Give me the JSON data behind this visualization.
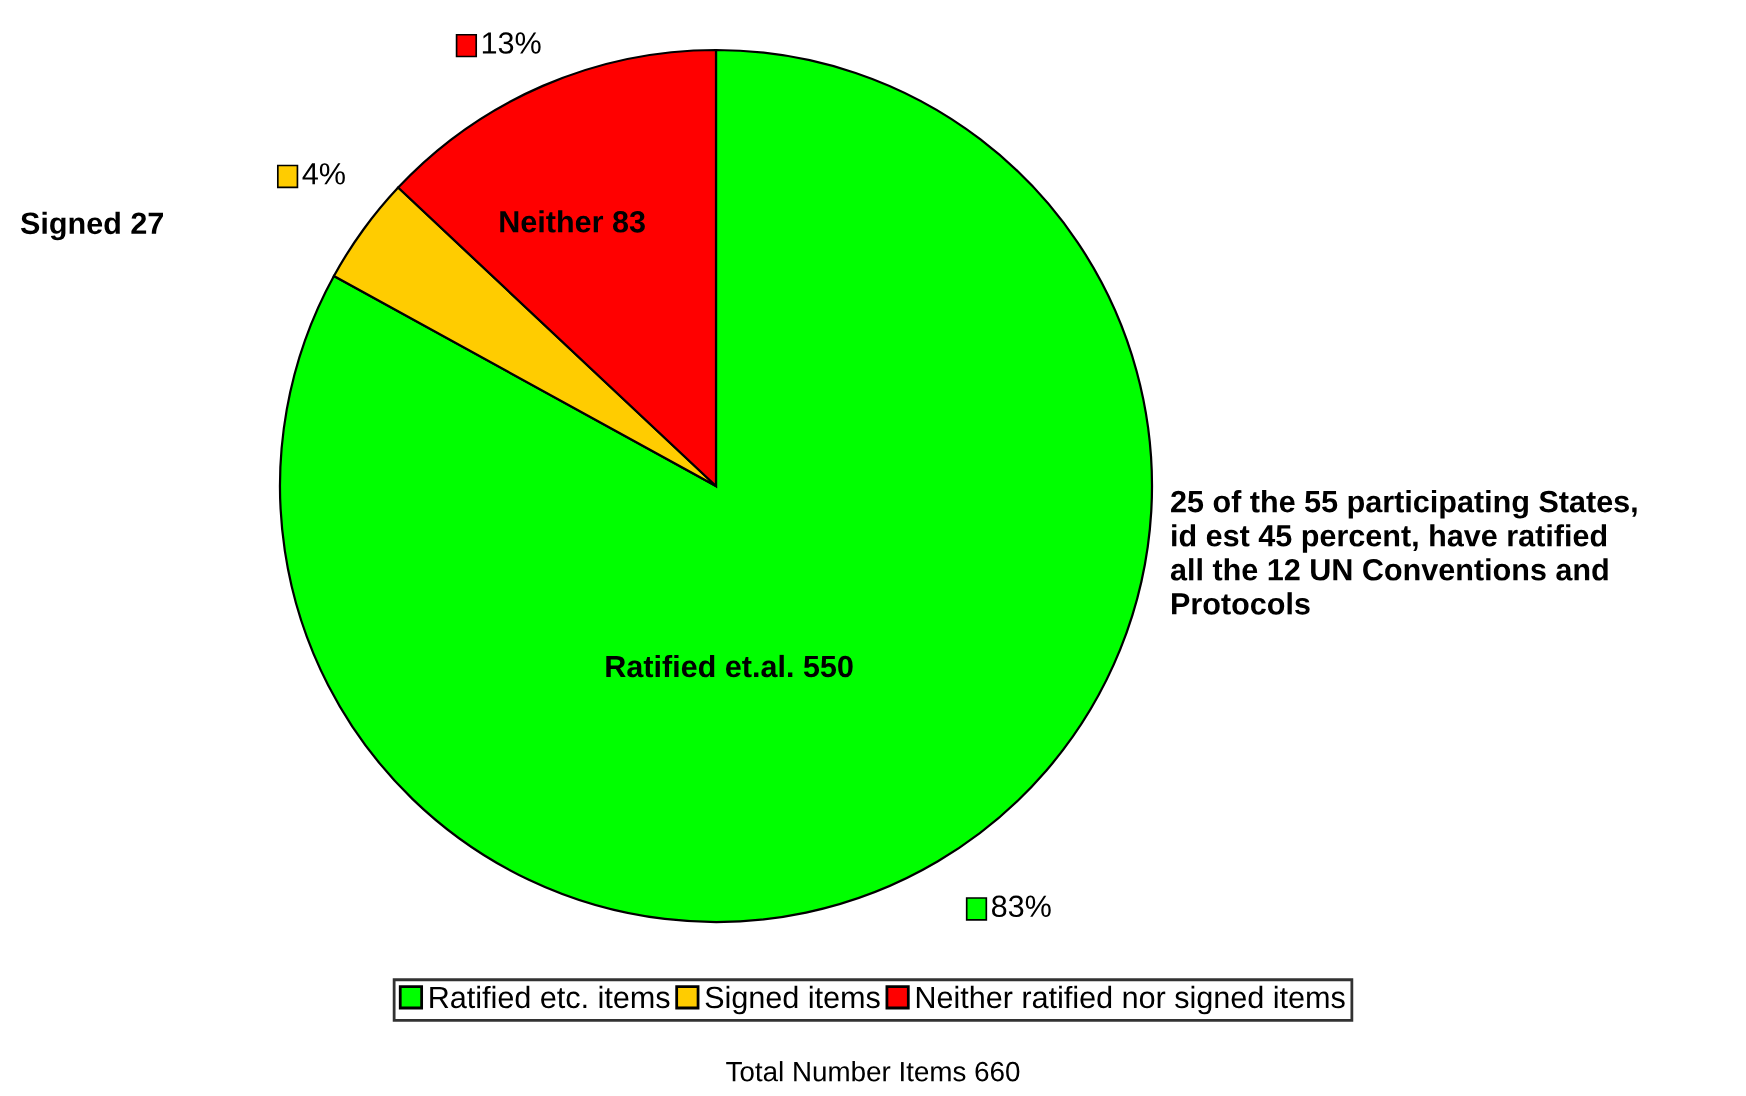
{
  "chart_data": {
    "type": "pie",
    "categories": [
      "Ratified etc. items",
      "Signed items",
      "Neither ratified nor signed items"
    ],
    "values": [
      83,
      4,
      13
    ],
    "colors": [
      "#00ff00",
      "#ffcc00",
      "#ff0000"
    ],
    "value_labels": [
      "83%",
      "4%",
      "13%"
    ],
    "legend": "bottom",
    "annotations": [
      "Ratified et.al. 550",
      "Signed 27",
      "Neither 83",
      "25 of the 55 participating States, id est 45 percent, have ratified all the 12 UN Conventions and Protocols",
      "Total Number Items 660"
    ]
  }
}
